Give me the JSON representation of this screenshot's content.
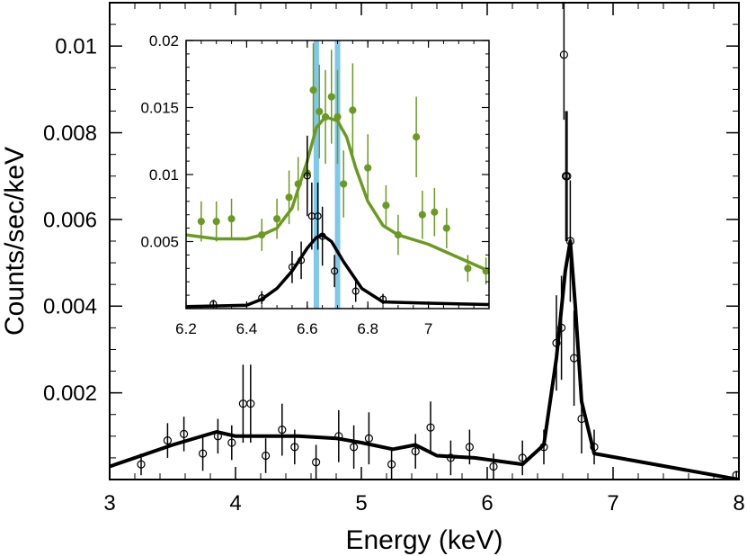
{
  "chart_data": [
    {
      "type": "scatter",
      "role": "main",
      "xlabel": "Energy (keV)",
      "ylabel": "Counts/sec/keV",
      "xlim": [
        3,
        8
      ],
      "ylim": [
        0,
        0.011
      ],
      "x_ticks": [
        3,
        4,
        5,
        6,
        7,
        8
      ],
      "x_tick_labels": [
        "3",
        "4",
        "5",
        "6",
        "7",
        "8"
      ],
      "y_ticks": [
        0.002,
        0.004,
        0.006,
        0.008,
        0.01
      ],
      "y_tick_labels": [
        "0.002",
        "0.004",
        "0.006",
        "0.008",
        "0.01"
      ],
      "series": [
        {
          "name": "data",
          "kind": "points",
          "color": "#000000",
          "points": [
            {
              "x": 3.25,
              "y": 0.00035,
              "err": 0.00025
            },
            {
              "x": 3.46,
              "y": 0.0009,
              "err": 0.0004
            },
            {
              "x": 3.59,
              "y": 0.00105,
              "err": 0.0004
            },
            {
              "x": 3.74,
              "y": 0.0006,
              "err": 0.0004
            },
            {
              "x": 3.86,
              "y": 0.001,
              "err": 0.0004
            },
            {
              "x": 3.97,
              "y": 0.00085,
              "err": 0.0004
            },
            {
              "x": 4.06,
              "y": 0.00175,
              "err": 0.0009
            },
            {
              "x": 4.12,
              "y": 0.00175,
              "err": 0.0009
            },
            {
              "x": 4.24,
              "y": 0.00055,
              "err": 0.0004
            },
            {
              "x": 4.37,
              "y": 0.00115,
              "err": 0.0006
            },
            {
              "x": 4.47,
              "y": 0.00075,
              "err": 0.0004
            },
            {
              "x": 4.64,
              "y": 0.0004,
              "err": 0.0004
            },
            {
              "x": 4.82,
              "y": 0.001,
              "err": 0.0006
            },
            {
              "x": 4.94,
              "y": 0.00075,
              "err": 0.0005
            },
            {
              "x": 5.06,
              "y": 0.00095,
              "err": 0.0006
            },
            {
              "x": 5.24,
              "y": 0.00035,
              "err": 0.00035
            },
            {
              "x": 5.43,
              "y": 0.00065,
              "err": 0.0004
            },
            {
              "x": 5.55,
              "y": 0.0012,
              "err": 0.0006
            },
            {
              "x": 5.71,
              "y": 0.0005,
              "err": 0.0004
            },
            {
              "x": 5.86,
              "y": 0.00075,
              "err": 0.0004
            },
            {
              "x": 6.05,
              "y": 0.0003,
              "err": 0.0003
            },
            {
              "x": 6.28,
              "y": 0.0005,
              "err": 0.0004
            },
            {
              "x": 6.45,
              "y": 0.00075,
              "err": 0.0004
            },
            {
              "x": 6.55,
              "y": 0.00315,
              "err": 0.0011
            },
            {
              "x": 6.59,
              "y": 0.0035,
              "err": 0.0012
            },
            {
              "x": 6.61,
              "y": 0.0098,
              "err": 0.0015
            },
            {
              "x": 6.625,
              "y": 0.007,
              "err": 0.0015
            },
            {
              "x": 6.635,
              "y": 0.007,
              "err": 0.0015
            },
            {
              "x": 6.66,
              "y": 0.0055,
              "err": 0.0014
            },
            {
              "x": 6.69,
              "y": 0.0028,
              "err": 0.0011
            },
            {
              "x": 6.75,
              "y": 0.0014,
              "err": 0.0008
            },
            {
              "x": 6.85,
              "y": 0.00075,
              "err": 0.0004
            },
            {
              "x": 7.98,
              "y": 0.0001,
              "err": 0.0001
            }
          ]
        },
        {
          "name": "model",
          "kind": "line",
          "color": "#000000",
          "x": [
            3.0,
            3.5,
            3.85,
            4.0,
            4.5,
            4.8,
            5.0,
            5.25,
            5.43,
            5.6,
            5.9,
            6.28,
            6.45,
            6.55,
            6.62,
            6.66,
            6.7,
            6.75,
            6.85,
            8.0
          ],
          "y": [
            0.0003,
            0.0008,
            0.0011,
            0.001,
            0.001,
            0.00095,
            0.00085,
            0.0007,
            0.0008,
            0.00055,
            0.0005,
            0.00035,
            0.0008,
            0.0028,
            0.0048,
            0.0055,
            0.004,
            0.0018,
            0.0006,
            0.0
          ]
        }
      ]
    },
    {
      "type": "scatter",
      "role": "inset",
      "xlim": [
        6.2,
        7.2
      ],
      "ylim": [
        0.0,
        0.02
      ],
      "x_ticks": [
        6.2,
        6.4,
        6.6,
        6.8,
        7
      ],
      "x_tick_labels": [
        "6.2",
        "6.4",
        "6.6",
        "6.8",
        "7"
      ],
      "y_ticks": [
        0.005,
        0.01,
        0.015,
        0.02
      ],
      "y_tick_labels": [
        "0.005",
        "0.01",
        "0.015",
        "0.02"
      ],
      "vertical_bands": [
        {
          "x": 6.63,
          "color": "#7ec8ec"
        },
        {
          "x": 6.7,
          "color": "#7ec8ec"
        }
      ],
      "series": [
        {
          "name": "green data",
          "kind": "points",
          "color": "#6b9a22",
          "points": [
            {
              "x": 6.25,
              "y": 0.0065,
              "err": 0.0015
            },
            {
              "x": 6.3,
              "y": 0.0065,
              "err": 0.0015
            },
            {
              "x": 6.35,
              "y": 0.0067,
              "err": 0.0015
            },
            {
              "x": 6.45,
              "y": 0.0055,
              "err": 0.0012
            },
            {
              "x": 6.5,
              "y": 0.0067,
              "err": 0.0015
            },
            {
              "x": 6.54,
              "y": 0.0083,
              "err": 0.002
            },
            {
              "x": 6.57,
              "y": 0.0093,
              "err": 0.002
            },
            {
              "x": 6.6,
              "y": 0.0101,
              "err": 0.0025
            },
            {
              "x": 6.62,
              "y": 0.0163,
              "err": 0.0035
            },
            {
              "x": 6.64,
              "y": 0.0147,
              "err": 0.0035
            },
            {
              "x": 6.66,
              "y": 0.0143,
              "err": 0.0035
            },
            {
              "x": 6.68,
              "y": 0.0158,
              "err": 0.0035
            },
            {
              "x": 6.7,
              "y": 0.0143,
              "err": 0.0035
            },
            {
              "x": 6.72,
              "y": 0.0093,
              "err": 0.0025
            },
            {
              "x": 6.75,
              "y": 0.0148,
              "err": 0.0035
            },
            {
              "x": 6.8,
              "y": 0.0105,
              "err": 0.0025
            },
            {
              "x": 6.86,
              "y": 0.0077,
              "err": 0.0015
            },
            {
              "x": 6.9,
              "y": 0.0055,
              "err": 0.0015
            },
            {
              "x": 6.96,
              "y": 0.0128,
              "err": 0.003
            },
            {
              "x": 6.98,
              "y": 0.007,
              "err": 0.0018
            },
            {
              "x": 7.02,
              "y": 0.0072,
              "err": 0.0018
            },
            {
              "x": 7.06,
              "y": 0.006,
              "err": 0.0015
            },
            {
              "x": 7.13,
              "y": 0.003,
              "err": 0.001
            },
            {
              "x": 7.19,
              "y": 0.0028,
              "err": 0.001
            }
          ]
        },
        {
          "name": "green model",
          "kind": "line",
          "color": "#6b9a22",
          "x": [
            6.2,
            6.3,
            6.4,
            6.45,
            6.5,
            6.55,
            6.6,
            6.63,
            6.66,
            6.7,
            6.73,
            6.76,
            6.8,
            6.85,
            6.9,
            7.0,
            7.1,
            7.2
          ],
          "y": [
            0.0055,
            0.0052,
            0.0052,
            0.0055,
            0.006,
            0.0075,
            0.011,
            0.0135,
            0.0143,
            0.014,
            0.0128,
            0.0105,
            0.008,
            0.0062,
            0.0055,
            0.0048,
            0.0038,
            0.0028
          ]
        },
        {
          "name": "black data",
          "kind": "points",
          "color": "#000000",
          "points": [
            {
              "x": 6.29,
              "y": 0.00035,
              "err": 0.0003
            },
            {
              "x": 6.45,
              "y": 0.0008,
              "err": 0.0005
            },
            {
              "x": 6.55,
              "y": 0.0031,
              "err": 0.0012
            },
            {
              "x": 6.58,
              "y": 0.0036,
              "err": 0.0014
            },
            {
              "x": 6.6,
              "y": 0.0099,
              "err": 0.003
            },
            {
              "x": 6.615,
              "y": 0.0069,
              "err": 0.0025
            },
            {
              "x": 6.635,
              "y": 0.0069,
              "err": 0.0025
            },
            {
              "x": 6.65,
              "y": 0.0054,
              "err": 0.0022
            },
            {
              "x": 6.69,
              "y": 0.0028,
              "err": 0.0012
            },
            {
              "x": 6.76,
              "y": 0.0013,
              "err": 0.0008
            },
            {
              "x": 6.85,
              "y": 0.0007,
              "err": 0.0004
            }
          ]
        },
        {
          "name": "black model",
          "kind": "line",
          "color": "#000000",
          "x": [
            6.2,
            6.4,
            6.45,
            6.5,
            6.55,
            6.6,
            6.63,
            6.65,
            6.68,
            6.72,
            6.78,
            6.85,
            7.0,
            7.2
          ],
          "y": [
            0.00015,
            0.00025,
            0.0007,
            0.0015,
            0.0028,
            0.0045,
            0.0053,
            0.0055,
            0.005,
            0.0035,
            0.0015,
            0.0005,
            0.0004,
            0.0003
          ]
        }
      ]
    }
  ]
}
